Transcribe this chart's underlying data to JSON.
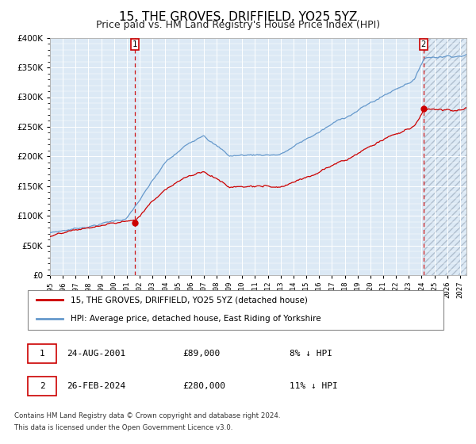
{
  "title": "15, THE GROVES, DRIFFIELD, YO25 5YZ",
  "subtitle": "Price paid vs. HM Land Registry's House Price Index (HPI)",
  "legend_line1": "15, THE GROVES, DRIFFIELD, YO25 5YZ (detached house)",
  "legend_line2": "HPI: Average price, detached house, East Riding of Yorkshire",
  "footer1": "Contains HM Land Registry data © Crown copyright and database right 2024.",
  "footer2": "This data is licensed under the Open Government Licence v3.0.",
  "transaction1_date": "24-AUG-2001",
  "transaction1_price": "£89,000",
  "transaction1_hpi": "8% ↓ HPI",
  "transaction2_date": "26-FEB-2024",
  "transaction2_price": "£280,000",
  "transaction2_hpi": "11% ↓ HPI",
  "transaction1_decimal_year": 2001.644,
  "transaction2_decimal_year": 2024.144,
  "transaction1_value": 89000,
  "transaction2_value": 280000,
  "ylim": [
    0,
    400000
  ],
  "xlim_start": 1995.0,
  "xlim_end": 2027.5,
  "hpi_color": "#6699cc",
  "price_color": "#cc0000",
  "plot_bg": "#dce9f5",
  "grid_color": "#ffffff",
  "future_start": 2024.144,
  "title_fontsize": 11,
  "subtitle_fontsize": 9
}
